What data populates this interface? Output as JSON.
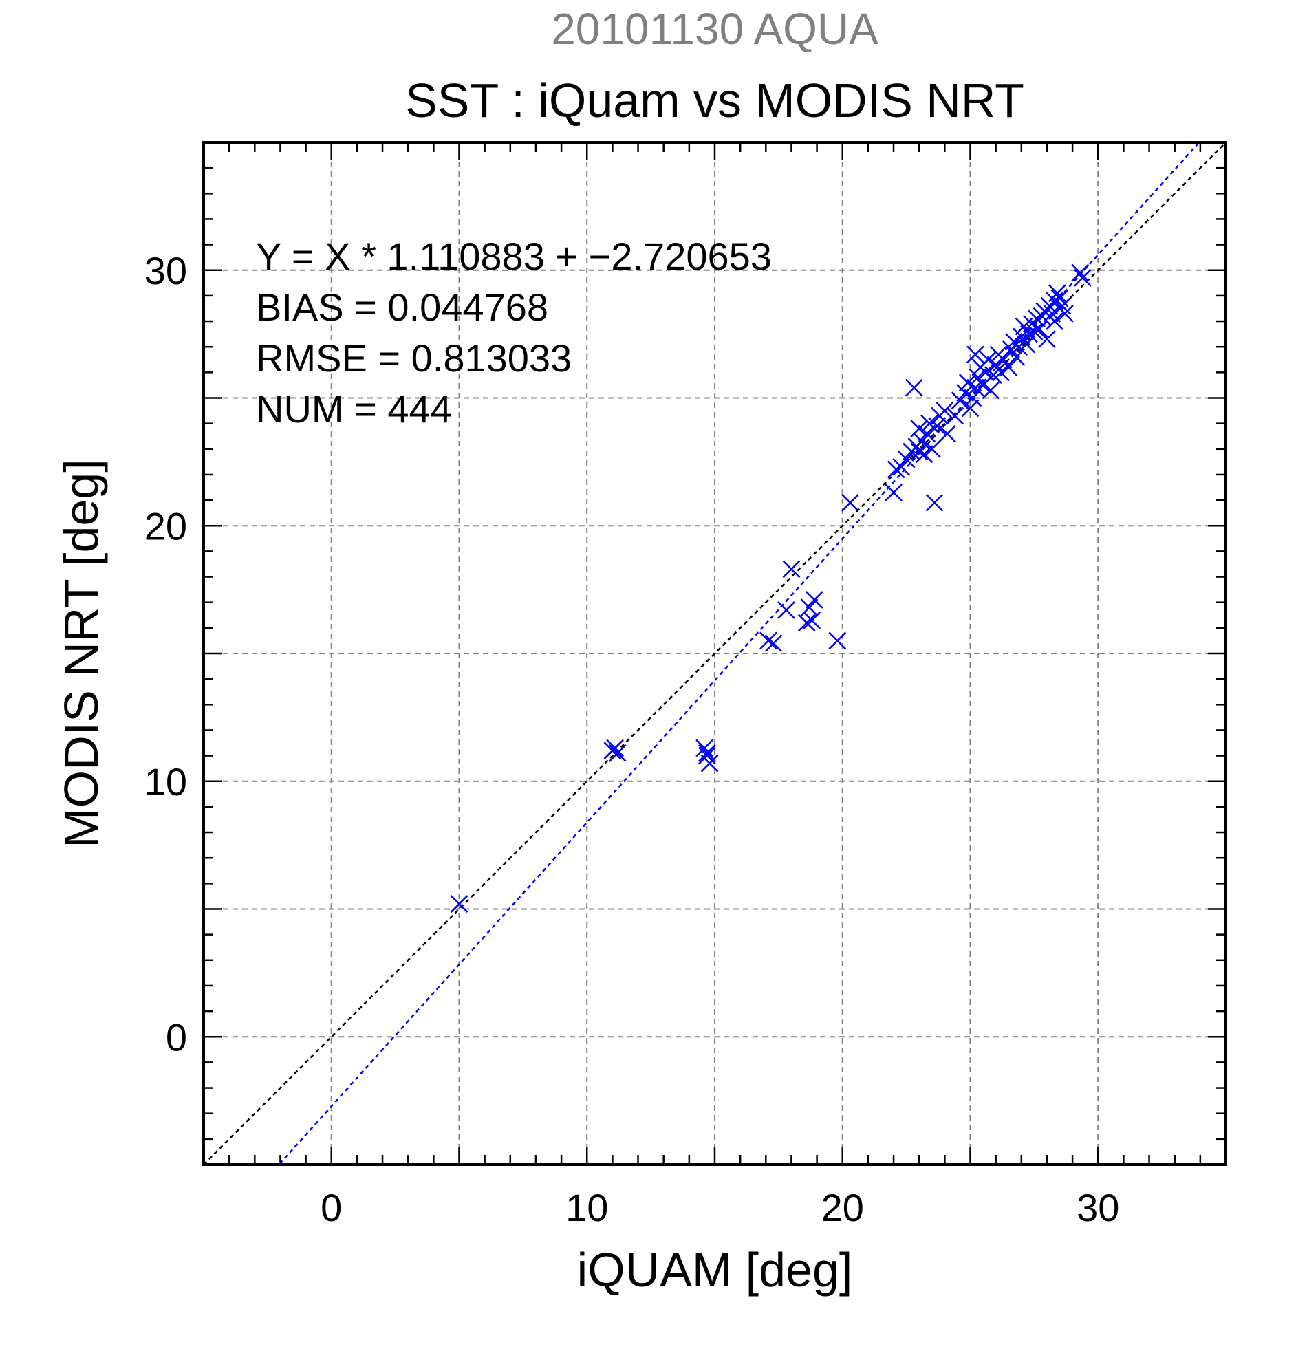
{
  "chart_data": {
    "type": "scatter",
    "title": "SST : iQuam vs MODIS NRT",
    "subtitle": "20101130 AQUA",
    "xlabel": "iQUAM [deg]",
    "ylabel": "MODIS NRT [deg]",
    "xlim": [
      -5,
      35
    ],
    "ylim": [
      -5,
      35
    ],
    "xticks": [
      0,
      10,
      20,
      30
    ],
    "yticks": [
      0,
      10,
      20,
      30
    ],
    "xtick_labels": [
      "0",
      "10",
      "20",
      "30"
    ],
    "ytick_labels": [
      "0",
      "10",
      "20",
      "30"
    ],
    "grid": true,
    "marker": "x",
    "colors": {
      "points": "#0000ff",
      "fit_line": "#0000ff",
      "identity_line": "#000000",
      "subtitle": "#808080",
      "grid": "#808080"
    },
    "stats": [
      "Y = X * 1.110883 + −2.720653",
      "BIAS = 0.044768",
      "RMSE = 0.813033",
      "NUM = 444"
    ],
    "fit_line": {
      "slope": 1.110883,
      "intercept": -2.720653
    },
    "identity_line": {
      "slope": 1,
      "intercept": 0
    },
    "series": [
      {
        "points": [
          [
            5.0,
            5.2
          ],
          [
            11.0,
            11.2
          ],
          [
            11.2,
            11.1
          ],
          [
            11.1,
            11.3
          ],
          [
            14.6,
            11.3
          ],
          [
            14.7,
            11.1
          ],
          [
            14.8,
            10.7
          ],
          [
            14.7,
            11.0
          ],
          [
            17.1,
            15.5
          ],
          [
            17.3,
            15.4
          ],
          [
            17.8,
            16.7
          ],
          [
            18.0,
            18.3
          ],
          [
            18.6,
            16.2
          ],
          [
            18.8,
            16.3
          ],
          [
            18.7,
            16.8
          ],
          [
            18.9,
            17.1
          ],
          [
            19.8,
            15.5
          ],
          [
            20.3,
            20.9
          ],
          [
            22.0,
            21.3
          ],
          [
            23.6,
            20.9
          ],
          [
            22.8,
            25.4
          ],
          [
            22.1,
            22.2
          ],
          [
            22.3,
            22.3
          ],
          [
            22.5,
            22.6
          ],
          [
            22.7,
            22.9
          ],
          [
            22.9,
            23.1
          ],
          [
            23.0,
            22.9
          ],
          [
            23.1,
            23.3
          ],
          [
            23.2,
            22.8
          ],
          [
            23.3,
            23.6
          ],
          [
            23.0,
            23.8
          ],
          [
            23.5,
            23.0
          ],
          [
            23.4,
            24.0
          ],
          [
            23.7,
            23.9
          ],
          [
            23.8,
            24.3
          ],
          [
            24.1,
            23.6
          ],
          [
            24.0,
            24.5
          ],
          [
            24.4,
            24.3
          ],
          [
            24.6,
            24.9
          ],
          [
            24.8,
            25.2
          ],
          [
            24.9,
            25.6
          ],
          [
            25.0,
            24.6
          ],
          [
            25.1,
            25.0
          ],
          [
            25.2,
            25.4
          ],
          [
            25.3,
            25.8
          ],
          [
            25.4,
            26.2
          ],
          [
            25.2,
            26.7
          ],
          [
            25.5,
            25.5
          ],
          [
            25.6,
            26.0
          ],
          [
            25.7,
            26.5
          ],
          [
            25.8,
            25.3
          ],
          [
            25.9,
            25.9
          ],
          [
            26.0,
            26.3
          ],
          [
            26.1,
            26.7
          ],
          [
            26.2,
            26.0
          ],
          [
            26.3,
            26.5
          ],
          [
            26.5,
            26.2
          ],
          [
            26.6,
            26.9
          ],
          [
            26.7,
            27.2
          ],
          [
            26.8,
            26.6
          ],
          [
            26.9,
            27.0
          ],
          [
            27.0,
            27.4
          ],
          [
            27.1,
            27.8
          ],
          [
            27.2,
            27.1
          ],
          [
            27.3,
            27.5
          ],
          [
            27.4,
            27.9
          ],
          [
            27.5,
            27.6
          ],
          [
            27.6,
            28.1
          ],
          [
            27.7,
            27.7
          ],
          [
            27.8,
            28.2
          ],
          [
            27.9,
            28.4
          ],
          [
            28.0,
            27.3
          ],
          [
            28.1,
            28.6
          ],
          [
            28.2,
            28.3
          ],
          [
            28.3,
            28.8
          ],
          [
            28.4,
            29.1
          ],
          [
            28.5,
            28.5
          ],
          [
            28.6,
            28.6
          ],
          [
            28.7,
            28.3
          ],
          [
            28.3,
            28.0
          ],
          [
            28.5,
            28.9
          ],
          [
            29.3,
            29.9
          ],
          [
            29.4,
            29.7
          ]
        ]
      }
    ]
  }
}
